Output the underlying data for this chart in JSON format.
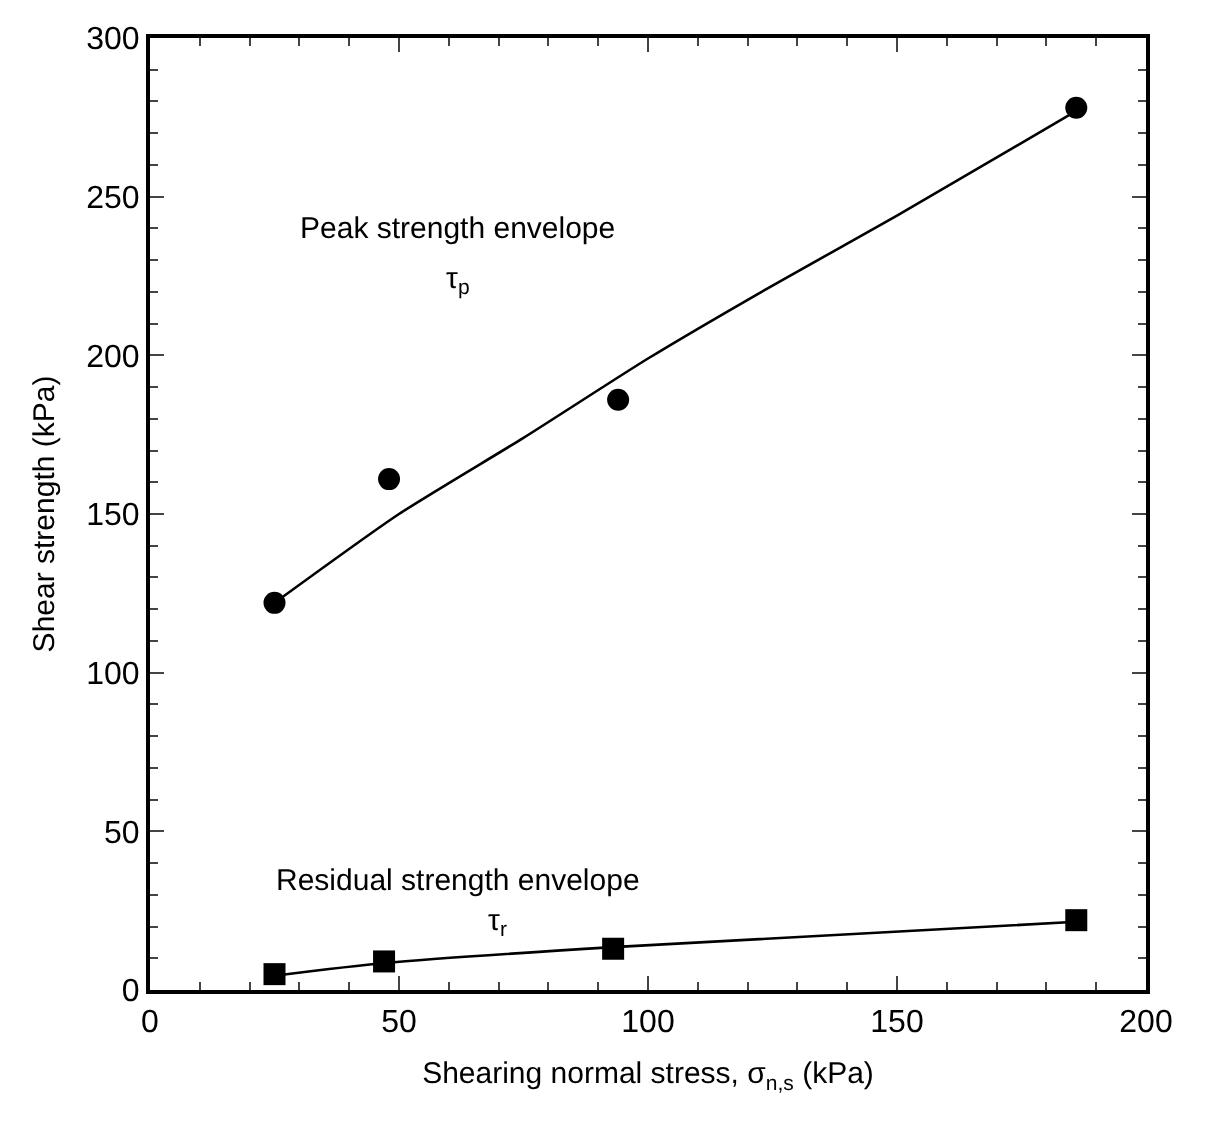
{
  "chart_data": {
    "type": "scatter",
    "xlabel": "Shearing normal stress, σ$_{n,s}$ (kPa)",
    "ylabel": "Shear strength (kPa)",
    "xlim": [
      0,
      200
    ],
    "xticks": [
      0,
      50,
      100,
      150,
      200
    ],
    "ylim": [
      0,
      300
    ],
    "yticks": [
      0,
      50,
      100,
      150,
      200,
      250,
      300
    ],
    "grid": false,
    "series": [
      {
        "type": "line",
        "color": "#000000",
        "marker": "none",
        "line_style": "solid",
        "x": [
          25,
          50,
          75,
          100,
          125,
          150,
          186
        ],
        "values": [
          122,
          150,
          174,
          199,
          222,
          244,
          277
        ]
      },
      {
        "type": "line",
        "color": "#000000",
        "marker": "none",
        "line_style": "solid",
        "x": [
          25,
          47,
          93,
          186
        ],
        "values": [
          4.5,
          8.5,
          13.5,
          21.5
        ]
      },
      {
        "color": "#000000",
        "marker": "circle",
        "x": [
          25,
          48,
          94,
          186
        ],
        "values": [
          122,
          161,
          186,
          278
        ]
      },
      {
        "color": "#000000",
        "marker": "square",
        "x": [
          25,
          47,
          93,
          186
        ],
        "values": [
          5,
          9,
          13,
          22
        ]
      }
    ],
    "annotations": [
      "Peak strength envelope",
      "τ$_{p}$",
      "Residual strength envelope",
      "τ$_{r}$"
    ]
  }
}
